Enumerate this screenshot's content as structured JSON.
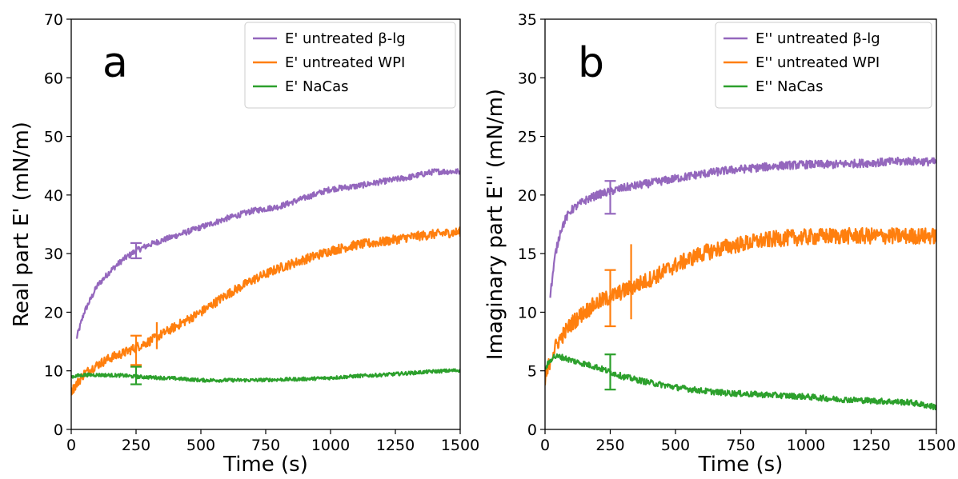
{
  "colors": {
    "purple": "#9467bd",
    "orange": "#ff7f0e",
    "green": "#2ca02c"
  },
  "chart_data": [
    {
      "type": "line",
      "panel_label": "a",
      "xlabel": "Time (s)",
      "ylabel": "Real part E' (mN/m)",
      "xlim": [
        0,
        1500
      ],
      "ylim": [
        0,
        70
      ],
      "xticks": [
        0,
        250,
        500,
        750,
        1000,
        1250,
        1500
      ],
      "xtick_labels": [
        "0",
        "250",
        "500",
        "750",
        "1000",
        "1250",
        "1500"
      ],
      "yticks": [
        0,
        10,
        20,
        30,
        40,
        50,
        60,
        70
      ],
      "ytick_labels": [
        "0",
        "10",
        "20",
        "30",
        "40",
        "50",
        "60",
        "70"
      ],
      "legend_position": "top-right",
      "grid": false,
      "series": [
        {
          "name": "E' untreated β-lg",
          "color": "#9467bd",
          "noise": 0.5,
          "x": [
            20,
            50,
            100,
            150,
            200,
            250,
            300,
            400,
            500,
            600,
            700,
            800,
            900,
            1000,
            1100,
            1200,
            1300,
            1400,
            1500
          ],
          "y": [
            15.5,
            20,
            24.5,
            27,
            29,
            30.5,
            31.5,
            33,
            34.5,
            36,
            37.3,
            38,
            39.5,
            41,
            41.5,
            42.3,
            43,
            44,
            44
          ],
          "error_bar": {
            "x": 250,
            "y": 30.5,
            "err": 1.3
          }
        },
        {
          "name": "E' untreated WPI",
          "color": "#ff7f0e",
          "noise": 0.8,
          "x": [
            0,
            50,
            100,
            150,
            200,
            250,
            300,
            400,
            500,
            600,
            700,
            800,
            900,
            1000,
            1100,
            1200,
            1300,
            1400,
            1500
          ],
          "y": [
            6.5,
            9.5,
            11,
            12.2,
            13,
            14,
            15,
            17.5,
            20,
            23,
            25.5,
            27.5,
            29,
            30.5,
            31.5,
            32,
            32.8,
            33.3,
            33.7
          ],
          "error_bar": {
            "x": 250,
            "y": 13.5,
            "err": 2.5
          },
          "extra_error_bar": {
            "x": 330,
            "y": 16,
            "err": 2.3
          }
        },
        {
          "name": "E' NaCas",
          "color": "#2ca02c",
          "noise": 0.3,
          "x": [
            0,
            50,
            100,
            200,
            250,
            300,
            400,
            500,
            600,
            700,
            800,
            900,
            1000,
            1100,
            1200,
            1300,
            1400,
            1500
          ],
          "y": [
            9,
            9.3,
            9.3,
            9.2,
            9,
            8.9,
            8.7,
            8.4,
            8.4,
            8.4,
            8.5,
            8.6,
            8.8,
            9.1,
            9.3,
            9.6,
            9.9,
            10.1
          ],
          "error_bar": {
            "x": 250,
            "y": 9.2,
            "err": 1.5
          }
        }
      ]
    },
    {
      "type": "line",
      "panel_label": "b",
      "xlabel": "Time (s)",
      "ylabel": "Imaginary part E'' (mN/m)",
      "xlim": [
        0,
        1500
      ],
      "ylim": [
        0,
        35
      ],
      "xticks": [
        0,
        250,
        500,
        750,
        1000,
        1250,
        1500
      ],
      "xtick_labels": [
        "0",
        "250",
        "500",
        "750",
        "1000",
        "1250",
        "1500"
      ],
      "yticks": [
        0,
        5,
        10,
        15,
        20,
        25,
        30,
        35
      ],
      "ytick_labels": [
        "0",
        "5",
        "10",
        "15",
        "20",
        "25",
        "30",
        "35"
      ],
      "legend_position": "top-right",
      "grid": false,
      "series": [
        {
          "name": "E'' untreated β-lg",
          "color": "#9467bd",
          "noise": 0.35,
          "x": [
            20,
            40,
            60,
            80,
            100,
            150,
            200,
            250,
            300,
            400,
            500,
            600,
            700,
            800,
            900,
            1000,
            1100,
            1200,
            1300,
            1400,
            1500
          ],
          "y": [
            11.5,
            15,
            17,
            18,
            18.7,
            19.5,
            20,
            20.3,
            20.6,
            21,
            21.4,
            21.8,
            22.1,
            22.3,
            22.5,
            22.6,
            22.6,
            22.7,
            22.8,
            22.9,
            22.8
          ],
          "error_bar": {
            "x": 250,
            "y": 19.8,
            "err": 1.4
          }
        },
        {
          "name": "E'' untreated WPI",
          "color": "#ff7f0e",
          "noise": 0.7,
          "x": [
            0,
            20,
            50,
            100,
            150,
            200,
            250,
            300,
            400,
            500,
            600,
            700,
            800,
            900,
            1000,
            1100,
            1200,
            1300,
            1400,
            1500
          ],
          "y": [
            4,
            6,
            7.5,
            9,
            10,
            10.8,
            11.3,
            11.8,
            12.8,
            14,
            15,
            15.6,
            16,
            16.3,
            16.4,
            16.5,
            16.5,
            16.5,
            16.5,
            16.5
          ],
          "error_bar": {
            "x": 250,
            "y": 11.2,
            "err": 2.4
          },
          "extra_error_bar": {
            "x": 330,
            "y": 12.6,
            "err": 3.2
          }
        },
        {
          "name": "E'' NaCas",
          "color": "#2ca02c",
          "noise": 0.25,
          "x": [
            0,
            30,
            60,
            100,
            150,
            200,
            250,
            300,
            400,
            500,
            600,
            700,
            800,
            900,
            1000,
            1100,
            1200,
            1300,
            1400,
            1500
          ],
          "y": [
            5.2,
            6.2,
            6.2,
            5.9,
            5.6,
            5.3,
            4.9,
            4.5,
            4,
            3.6,
            3.3,
            3.1,
            3,
            2.9,
            2.8,
            2.6,
            2.5,
            2.4,
            2.3,
            1.9
          ],
          "error_bar": {
            "x": 250,
            "y": 4.9,
            "err": 1.5
          }
        }
      ]
    }
  ]
}
